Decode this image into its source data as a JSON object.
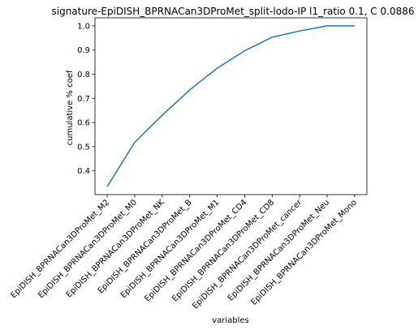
{
  "chart_data": {
    "type": "line",
    "title": "signature-EpiDISH_BPRNACan3DProMet_split-lodo-IP l1_ratio 0.1, C 0.0886",
    "xlabel": "variables",
    "ylabel": "cumulative % coef",
    "categories": [
      "EpiDISH_BPRNACan3DProMet_M2",
      "EpiDISH_BPRNACan3DProMet_M0",
      "EpiDISH_BPRNACan3DProMet_NK",
      "EpiDISH_BPRNACan3DProMet_B",
      "EpiDISH_BPRNACan3DProMet_M1",
      "EpiDISH_BPRNACan3DProMet_CD4",
      "EpiDISH_BPRNACan3DProMet_CD8",
      "EpiDISH_BPRNACan3DProMet_cancer",
      "EpiDISH_BPRNACan3DProMet_Neu",
      "EpiDISH_BPRNACan3DProMet_Mono"
    ],
    "values": [
      0.335,
      0.518,
      0.63,
      0.735,
      0.825,
      0.897,
      0.953,
      0.979,
      1.0,
      1.0
    ],
    "yticks": [
      0.4,
      0.5,
      0.6,
      0.7,
      0.8,
      0.9,
      1.0
    ],
    "ylim": [
      0.3018,
      1.0333
    ],
    "color": "#1f77b4",
    "grid": false,
    "legend": "none"
  }
}
